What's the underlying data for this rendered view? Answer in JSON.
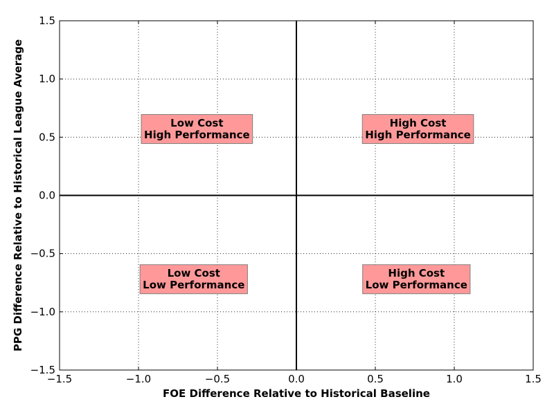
{
  "chart_data": {
    "type": "scatter",
    "title": "",
    "xlabel": "FOE Difference Relative to Historical Baseline",
    "ylabel": "PPG Difference Relative to Historical League Average",
    "xlim": [
      -1.5,
      1.5
    ],
    "ylim": [
      -1.5,
      1.5
    ],
    "xticks": [
      -1.5,
      -1.0,
      -0.5,
      0.0,
      0.5,
      1.0,
      1.5
    ],
    "yticks": [
      -1.5,
      -1.0,
      -0.5,
      0.0,
      0.5,
      1.0,
      1.5
    ],
    "xtick_labels": [
      "−1.5",
      "−1.0",
      "−0.5",
      "0.0",
      "0.5",
      "1.0",
      "1.5"
    ],
    "ytick_labels": [
      "−1.5",
      "−1.0",
      "−0.5",
      "0.0",
      "0.5",
      "1.0",
      "1.5"
    ],
    "grid": true,
    "reference_lines": {
      "x": 0.0,
      "y": 0.0
    },
    "series": [],
    "box_color": "#ff9999",
    "box_edge_color": "#7f7f7f",
    "annotations": [
      {
        "id": "low-cost-high-performance",
        "x": -0.63,
        "y": 0.57,
        "lines": [
          "Low Cost",
          "High Performance"
        ]
      },
      {
        "id": "high-cost-high-performance",
        "x": 0.77,
        "y": 0.57,
        "lines": [
          "High Cost",
          "High Performance"
        ]
      },
      {
        "id": "low-cost-low-performance",
        "x": -0.65,
        "y": -0.72,
        "lines": [
          "Low Cost",
          "Low Performance"
        ]
      },
      {
        "id": "high-cost-low-performance",
        "x": 0.76,
        "y": -0.72,
        "lines": [
          "High Cost",
          "Low Performance"
        ]
      }
    ]
  }
}
